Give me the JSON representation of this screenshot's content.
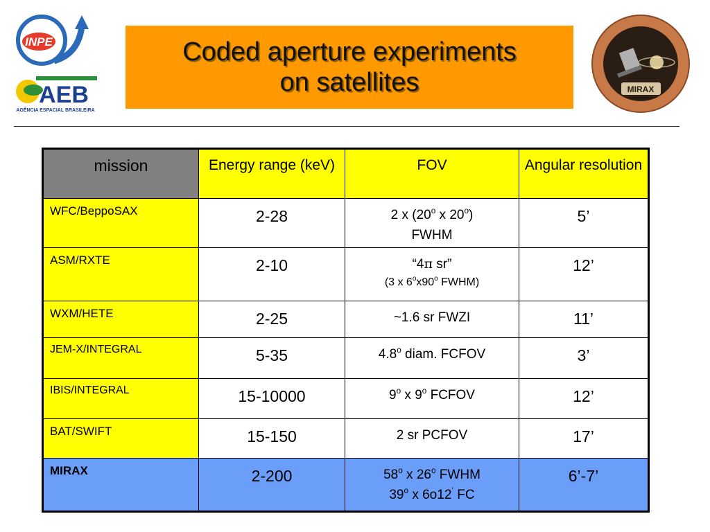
{
  "header": {
    "title_line1": "Coded aperture experiments",
    "title_line2": "on satellites",
    "logo_inpe_text": "INPE",
    "logo_aeb_text": "AEB",
    "logo_aeb_subtext": "AGÊNCIA ESPACIAL BRASILEIRA",
    "logo_mirax_text": "MIRAX"
  },
  "colors": {
    "title_bg": "#ff9900",
    "header_mission_bg": "#808080",
    "yellow": "#ffff00",
    "highlight_row": "#6a9ef8"
  },
  "table": {
    "headers": {
      "mission": "mission",
      "energy": "Energy range (keV)",
      "fov": "FOV",
      "angular": "Angular resolution"
    },
    "rows": [
      {
        "mission": "WFC/BeppoSAX",
        "energy": "2-28",
        "fov_a": "2 x (20",
        "sup1": "o",
        "fov_b": " x 20",
        "sup2": "o",
        "fov_c": ")",
        "fov_line2": "FWHM",
        "angular": "5’"
      },
      {
        "mission": "ASM/RXTE",
        "energy": "2-10",
        "fov_a": "“4",
        "pi": "π",
        "fov_b": " sr”",
        "fov_small_a": "(3 x 6",
        "sup1": "o",
        "fov_small_b": "x90",
        "sup2": "o",
        "fov_small_c": " FWHM)",
        "angular": "12’"
      },
      {
        "mission": "WXM/HETE",
        "energy": "2-25",
        "fov": "~1.6 sr FWZI",
        "angular": "11’"
      },
      {
        "mission": "JEM-X/INTEGRAL",
        "energy": "5-35",
        "fov_a": "4.8",
        "sup1": "o",
        "fov_b": " diam. FCFOV",
        "angular": "3’"
      },
      {
        "mission": "IBIS/INTEGRAL",
        "energy": "15-10000",
        "fov_a": "9",
        "sup1": "o",
        "fov_b": " x 9",
        "sup2": "o",
        "fov_c": " FCFOV",
        "angular": "12’"
      },
      {
        "mission": "BAT/SWIFT",
        "energy": "15-150",
        "fov": "2 sr PCFOV",
        "angular": "17’"
      },
      {
        "mission": "MIRAX",
        "energy": "2-200",
        "fov_a": "58",
        "sup1": "o",
        "fov_b": " x 26",
        "sup2": "o",
        "fov_c": " FWHM",
        "fov2_a": "39",
        "sup3": "o",
        "fov2_b": " x 6",
        "fov2_c": "o",
        "fov2_d": "12",
        "sup4": "’",
        "fov2_e": " FC",
        "angular": "6’-7’"
      }
    ]
  }
}
